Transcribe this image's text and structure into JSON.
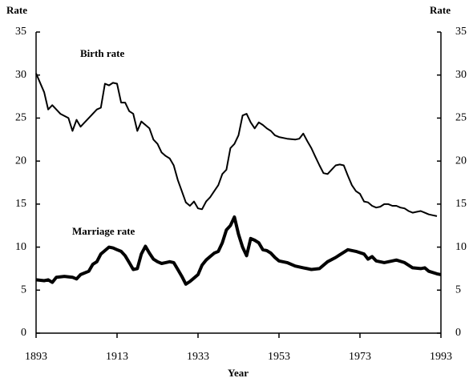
{
  "chart_data": {
    "type": "line",
    "y_label": "Rate",
    "y2_label": "Rate",
    "x_label": "Year",
    "annotations": [
      "Birth rate",
      "Marriage rate"
    ],
    "xlim": [
      1893,
      1993
    ],
    "xticks": [
      1893,
      1913,
      1933,
      1953,
      1973,
      1993
    ],
    "ylim": [
      0,
      35
    ],
    "yticks": [
      0,
      5,
      10,
      15,
      20,
      25,
      30,
      35
    ],
    "y2lim": [
      0,
      35
    ],
    "y2ticks": [
      0,
      5,
      10,
      15,
      20,
      25,
      30,
      35
    ],
    "grid": false,
    "series": [
      {
        "name": "Birth rate",
        "color": "#000000",
        "width": 2,
        "x": [
          1893,
          1895,
          1896,
          1897,
          1899,
          1901,
          1902,
          1903,
          1904,
          1906,
          1908,
          1909,
          1910,
          1911,
          1912,
          1913,
          1914,
          1915,
          1916,
          1917,
          1918,
          1919,
          1920,
          1921,
          1922,
          1923,
          1924,
          1925,
          1926,
          1927,
          1928,
          1929,
          1930,
          1931,
          1932,
          1933,
          1934,
          1935,
          1936,
          1937,
          1938,
          1939,
          1940,
          1941,
          1942,
          1943,
          1944,
          1945,
          1946,
          1947,
          1948,
          1949,
          1950,
          1951,
          1952,
          1953,
          1955,
          1957,
          1958,
          1959,
          1960,
          1961,
          1962,
          1963,
          1964,
          1965,
          1966,
          1967,
          1968,
          1969,
          1970,
          1971,
          1972,
          1973,
          1974,
          1975,
          1976,
          1977,
          1978,
          1979,
          1980,
          1981,
          1982,
          1983,
          1984,
          1985,
          1986,
          1987,
          1988,
          1989,
          1990,
          1991,
          1992
        ],
        "values": [
          30.2,
          28,
          26,
          26.5,
          25.5,
          25,
          23.5,
          24.8,
          24,
          25,
          26,
          26.2,
          29,
          28.8,
          29.1,
          29,
          26.8,
          26.8,
          25.8,
          25.5,
          23.5,
          24.6,
          24.2,
          23.8,
          22.5,
          22,
          21,
          20.6,
          20.3,
          19.5,
          17.8,
          16.5,
          15.2,
          14.8,
          15.3,
          14.5,
          14.4,
          15.3,
          15.8,
          16.5,
          17.2,
          18.5,
          19,
          21.5,
          22,
          23,
          25.3,
          25.5,
          24.5,
          23.8,
          24.5,
          24.2,
          23.8,
          23.5,
          23,
          22.8,
          22.6,
          22.5,
          22.6,
          23.2,
          22.3,
          21.5,
          20.5,
          19.5,
          18.6,
          18.5,
          19,
          19.5,
          19.6,
          19.5,
          18.3,
          17.2,
          16.5,
          16.2,
          15.3,
          15.2,
          14.8,
          14.6,
          14.7,
          15,
          15,
          14.8,
          14.8,
          14.6,
          14.5,
          14.2,
          14,
          14.1,
          14.2,
          14,
          13.8,
          13.7,
          13.6
        ]
      },
      {
        "name": "Marriage rate",
        "color": "#000000",
        "width": 4,
        "x": [
          1893,
          1895,
          1896,
          1897,
          1898,
          1900,
          1902,
          1903,
          1904,
          1906,
          1907,
          1908,
          1909,
          1910,
          1911,
          1912,
          1913,
          1914,
          1915,
          1916,
          1917,
          1918,
          1919,
          1920,
          1921,
          1922,
          1923,
          1924,
          1925,
          1926,
          1927,
          1928,
          1929,
          1930,
          1931,
          1932,
          1933,
          1934,
          1935,
          1936,
          1937,
          1938,
          1939,
          1940,
          1941,
          1942,
          1943,
          1944,
          1945,
          1946,
          1947,
          1948,
          1949,
          1950,
          1951,
          1952,
          1953,
          1955,
          1957,
          1959,
          1961,
          1963,
          1965,
          1967,
          1968,
          1970,
          1972,
          1974,
          1975,
          1976,
          1977,
          1979,
          1981,
          1982,
          1984,
          1986,
          1988,
          1989,
          1990,
          1992,
          1993
        ],
        "values": [
          6.2,
          6.1,
          6.2,
          5.9,
          6.5,
          6.6,
          6.5,
          6.3,
          6.8,
          7.2,
          8,
          8.3,
          9.2,
          9.6,
          10,
          9.9,
          9.7,
          9.5,
          9,
          8.2,
          7.4,
          7.5,
          9.2,
          10.1,
          9.3,
          8.6,
          8.3,
          8.1,
          8.2,
          8.3,
          8.2,
          7.4,
          6.6,
          5.7,
          6,
          6.4,
          6.8,
          7.9,
          8.5,
          8.9,
          9.3,
          9.5,
          10.5,
          12,
          12.5,
          13.5,
          11.5,
          10,
          9,
          11,
          10.8,
          10.5,
          9.7,
          9.6,
          9.3,
          8.8,
          8.4,
          8.2,
          7.8,
          7.6,
          7.4,
          7.5,
          8.3,
          8.8,
          9.1,
          9.7,
          9.5,
          9.2,
          8.6,
          8.9,
          8.4,
          8.2,
          8.4,
          8.5,
          8.2,
          7.6,
          7.5,
          7.6,
          7.2,
          6.9,
          6.8
        ]
      }
    ]
  }
}
